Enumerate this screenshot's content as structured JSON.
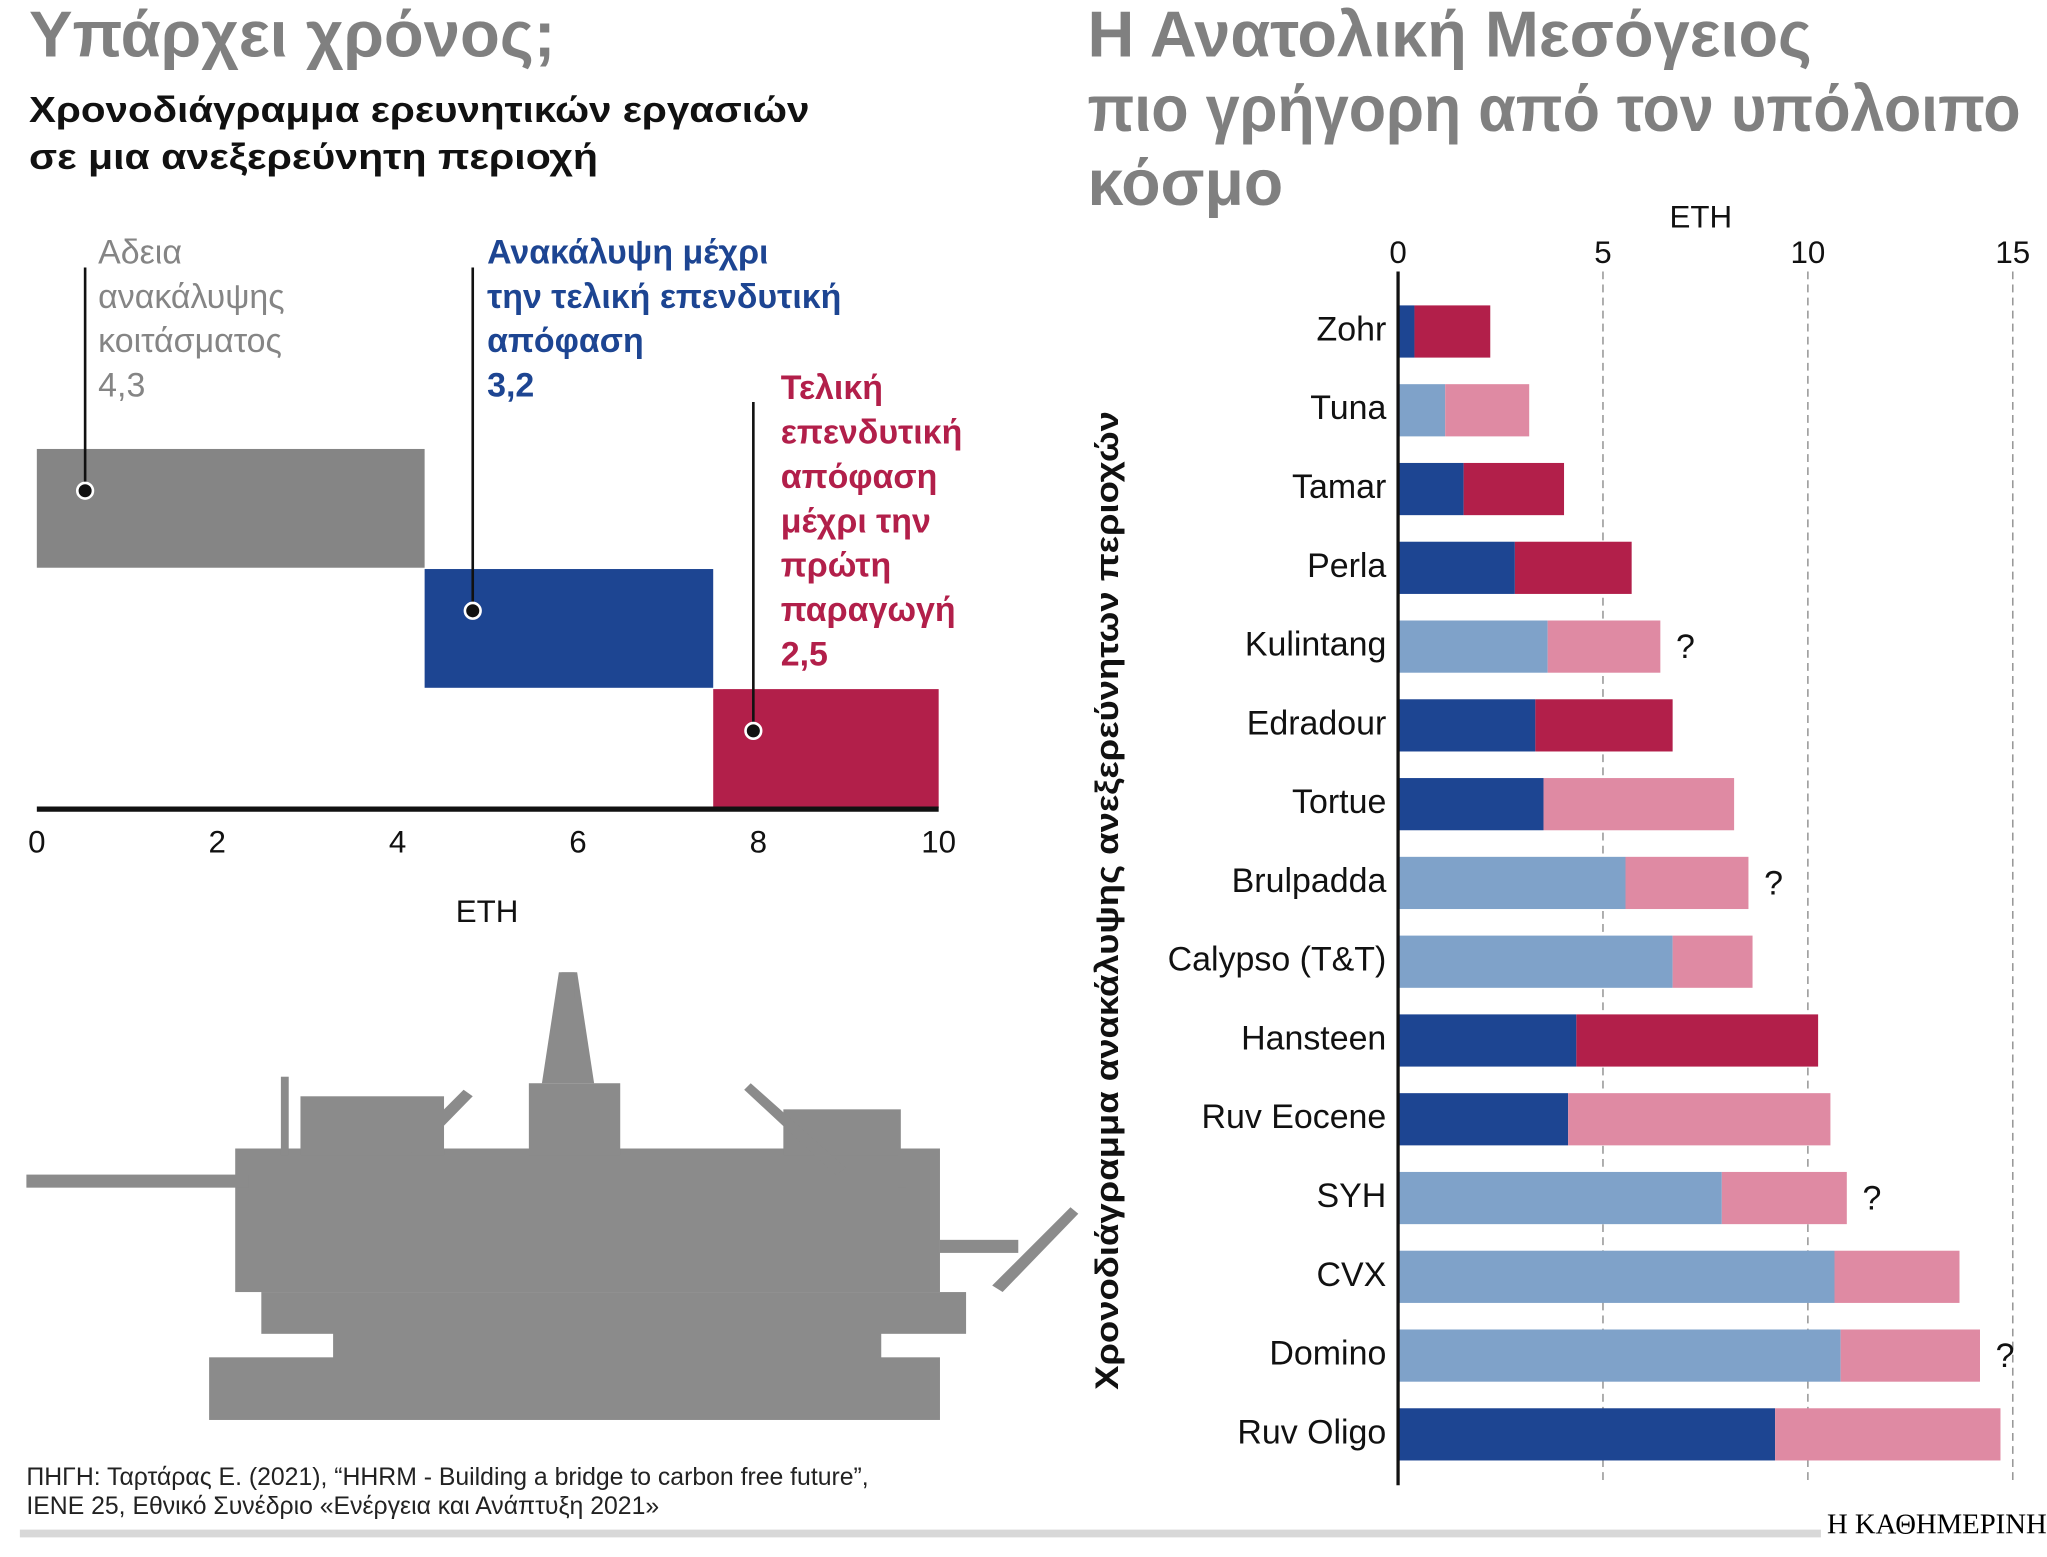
{
  "chart_data": [
    {
      "type": "gantt",
      "title": "Υπάρχει χρόνος;",
      "subtitle": [
        "Χρονοδιάγραμμα ερευνητικών εργασιών",
        "σε μια ανεξερεύνητη περιοχή"
      ],
      "labels": [
        [
          "Αδεια",
          "ανακάλυψης",
          "κοιτάσματος"
        ],
        [
          "Ανακάλυψη μέχρι",
          "την τελική επενδυτική",
          "απόφαση"
        ],
        [
          "Τελική",
          "επενδυτική",
          "απόφαση",
          "μέχρι την",
          "πρώτη",
          "παραγωγή"
        ]
      ],
      "values": [
        4.3,
        3.2,
        2.5
      ],
      "value_labels": [
        "4,3",
        "3,2",
        "2,5"
      ],
      "colors": [
        "#858585",
        "#1d4592",
        "#b21f4a"
      ],
      "xlabel": "ΕΤΗ",
      "xlim": [
        0,
        10
      ],
      "xticks": [
        0,
        2,
        4,
        6,
        8,
        10
      ]
    },
    {
      "type": "stacked-barh",
      "title": [
        "Η Ανατολική Μεσόγειος",
        "πιο γρήγορη από τον υπόλοιπο",
        "κόσμο"
      ],
      "ylabel": "Χρονοδιάγραμμα ανακάλυψης ανεξερεύνητων περιοχών",
      "xlabel": "ΕΤΗ",
      "categories": [
        "Zohr",
        "Tuna",
        "Tamar",
        "Perla",
        "Kulintang",
        "Edradour",
        "Tortue",
        "Brulpadda",
        "Calypso (T&T)",
        "Hansteen",
        "Ruv Eocene",
        "SYH",
        "CVX",
        "Domino",
        "Ruv Oligo"
      ],
      "series": [
        {
          "values": [
            0.4,
            1.15,
            1.6,
            2.85,
            3.65,
            3.35,
            3.55,
            5.55,
            6.7,
            4.35,
            4.15,
            7.9,
            10.65,
            10.8,
            9.2
          ],
          "colors": [
            "#1d4592",
            "#7fa2c9",
            "#1d4592",
            "#1d4592",
            "#7fa2c9",
            "#1d4592",
            "#1d4592",
            "#7fa2c9",
            "#7fa2c9",
            "#1d4592",
            "#1d4592",
            "#7fa2c9",
            "#7fa2c9",
            "#7fa2c9",
            "#1d4592"
          ]
        },
        {
          "values": [
            1.85,
            2.05,
            2.45,
            2.85,
            2.75,
            3.35,
            4.65,
            3.0,
            1.95,
            5.9,
            6.4,
            3.05,
            3.05,
            3.4,
            5.5
          ],
          "colors": [
            "#b21f4a",
            "#df8aa3",
            "#b21f4a",
            "#b21f4a",
            "#df8aa3",
            "#b21f4a",
            "#df8aa3",
            "#df8aa3",
            "#df8aa3",
            "#b21f4a",
            "#df8aa3",
            "#df8aa3",
            "#df8aa3",
            "#df8aa3",
            "#df8aa3"
          ]
        }
      ],
      "row_notes": [
        null,
        null,
        null,
        null,
        "?",
        null,
        null,
        "?",
        null,
        null,
        null,
        "?",
        null,
        "?",
        null
      ],
      "xlim": [
        0,
        15
      ],
      "xticks": [
        0,
        5,
        10,
        15
      ],
      "grid": true
    }
  ],
  "source": [
    "ΠΗΓΗ: Ταρτάρας Ε. (2021), “HHRM - Building a bridge to carbon free future”,",
    "ΙΕΝΕ 25, Εθνικό Συνέδριο «Ενέργεια και Ανάπτυξη 2021»"
  ],
  "brand": "Η ΚΑΘΗΜΕΡΙΝΗ"
}
